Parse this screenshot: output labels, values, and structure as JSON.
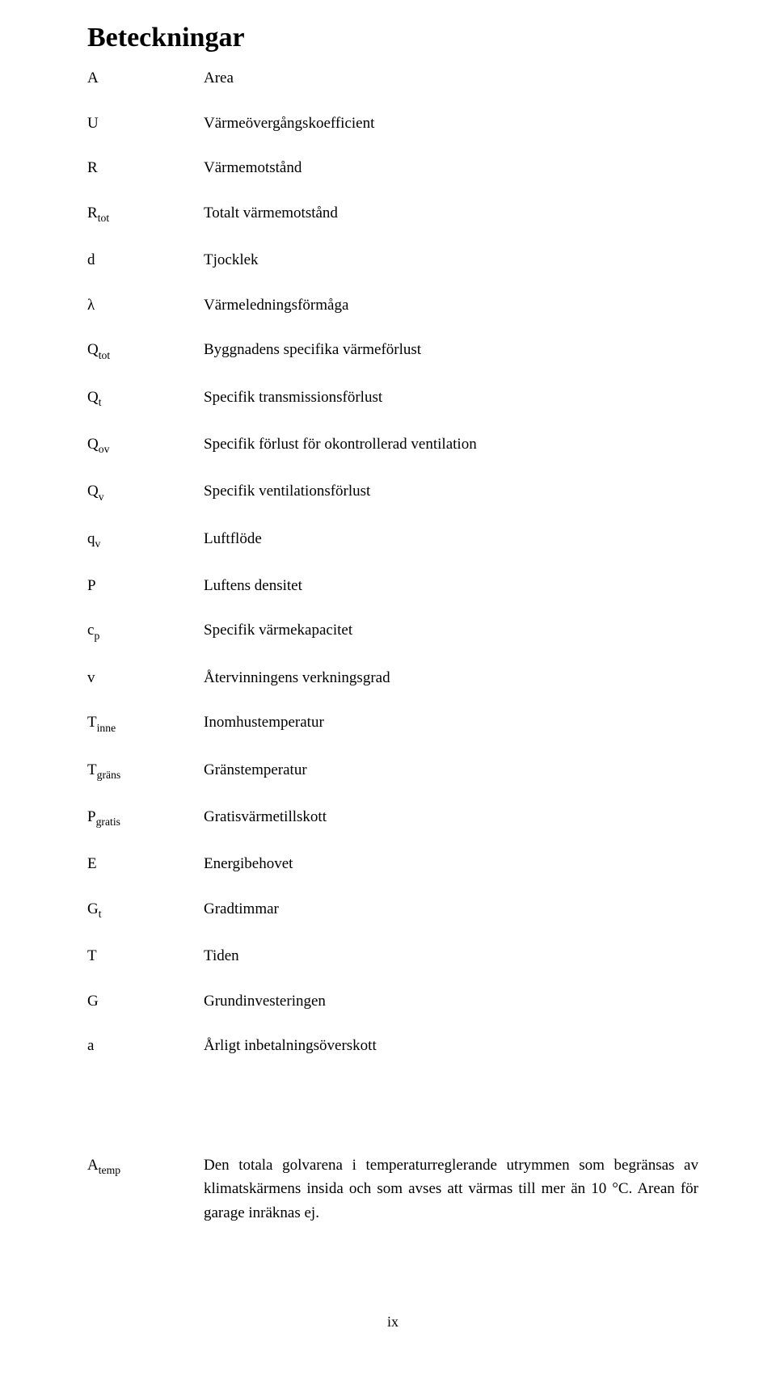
{
  "title": "Beteckningar",
  "rows": [
    {
      "symbol_base": "A",
      "symbol_sub": "",
      "desc": "Area"
    },
    {
      "symbol_base": "U",
      "symbol_sub": "",
      "desc": "Värmeövergångskoefficient"
    },
    {
      "symbol_base": "R",
      "symbol_sub": "",
      "desc": "Värmemotstånd"
    },
    {
      "symbol_base": "R",
      "symbol_sub": "tot",
      "desc": "Totalt värmemotstånd"
    },
    {
      "symbol_base": "d",
      "symbol_sub": "",
      "desc": "Tjocklek"
    },
    {
      "symbol_base": "λ",
      "symbol_sub": "",
      "desc": "Värmeledningsförmåga"
    },
    {
      "symbol_base": "Q",
      "symbol_sub": "tot",
      "desc": "Byggnadens specifika värmeförlust"
    },
    {
      "symbol_base": "Q",
      "symbol_sub": "t",
      "desc": "Specifik transmissionsförlust"
    },
    {
      "symbol_base": "Q",
      "symbol_sub": "ov",
      "desc": "Specifik förlust för okontrollerad ventilation"
    },
    {
      "symbol_base": "Q",
      "symbol_sub": "v",
      "desc": "Specifik ventilationsförlust"
    },
    {
      "symbol_base": "q",
      "symbol_sub": "v",
      "desc": "Luftflöde"
    },
    {
      "symbol_base": "Ρ",
      "symbol_sub": "",
      "desc": "Luftens densitet"
    },
    {
      "symbol_base": "c",
      "symbol_sub": "p",
      "desc": "Specifik värmekapacitet"
    },
    {
      "symbol_base": "v",
      "symbol_sub": "",
      "desc": "Återvinningens verkningsgrad"
    },
    {
      "symbol_base": "T",
      "symbol_sub": "inne",
      "desc": "Inomhustemperatur"
    },
    {
      "symbol_base": "T",
      "symbol_sub": "gräns",
      "desc": "Gränstemperatur"
    },
    {
      "symbol_base": "P",
      "symbol_sub": "gratis",
      "desc": "Gratisvärmetillskott"
    },
    {
      "symbol_base": "E",
      "symbol_sub": "",
      "desc": "Energibehovet"
    },
    {
      "symbol_base": "G",
      "symbol_sub": "t",
      "desc": "Gradtimmar"
    },
    {
      "symbol_base": "T",
      "symbol_sub": "",
      "desc": "Tiden"
    },
    {
      "symbol_base": "G",
      "symbol_sub": "",
      "desc": "Grundinvesteringen"
    },
    {
      "symbol_base": "a",
      "symbol_sub": "",
      "desc": "Årligt inbetalningsöverskott"
    }
  ],
  "paragraph": {
    "symbol_base": "A",
    "symbol_sub": "temp",
    "desc": "Den totala golvarena i temperaturreglerande utrymmen som begränsas av klimatskärmens insida och som avses att värmas till mer än 10 °C. Arean för garage inräknas ej."
  },
  "page_number": "ix"
}
